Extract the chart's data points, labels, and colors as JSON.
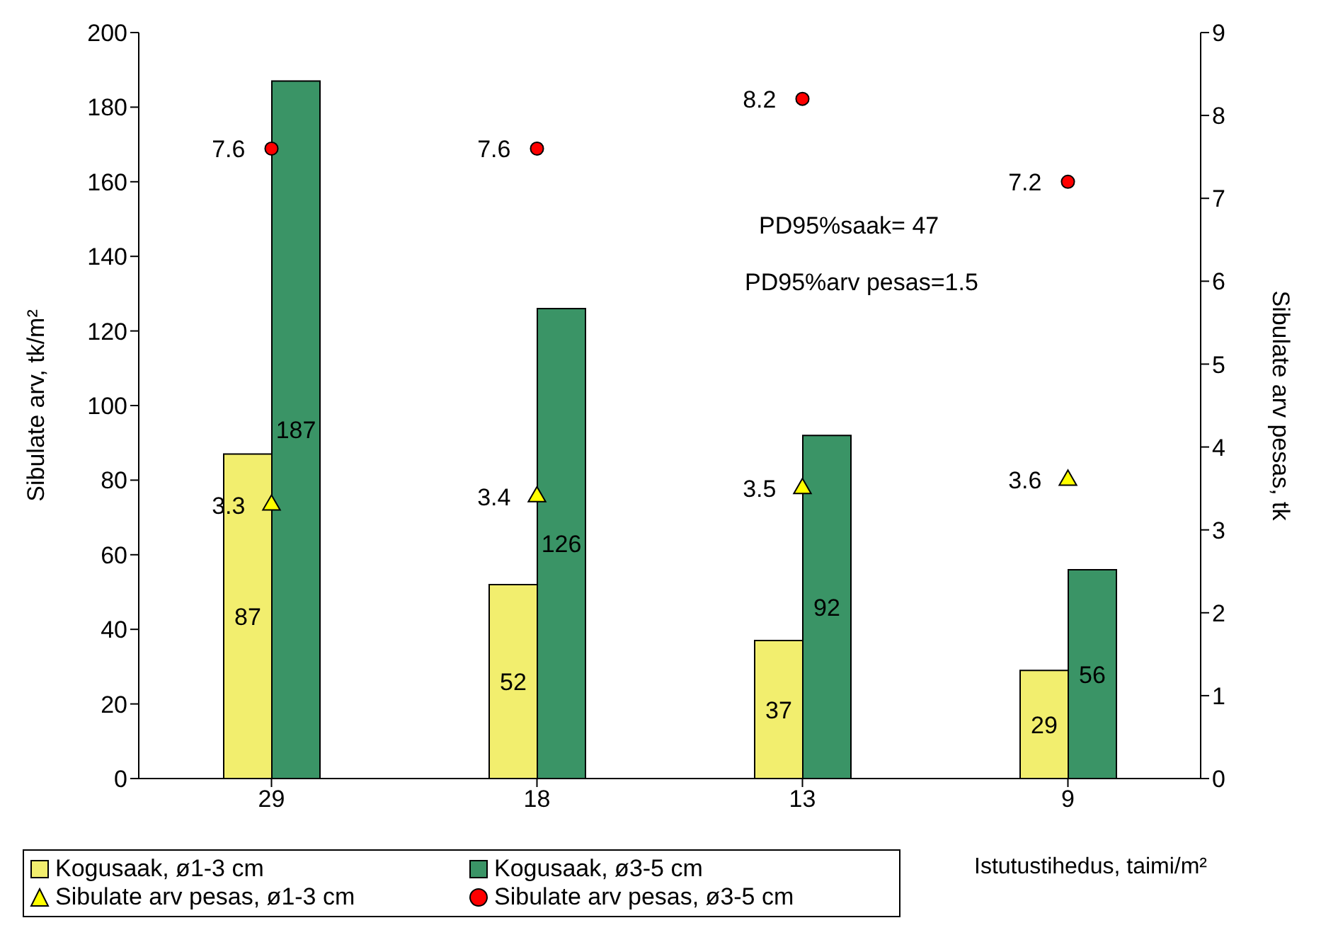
{
  "chart_data": {
    "type": "bar",
    "categories": [
      "29",
      "18",
      "13",
      "9"
    ],
    "series": [
      {
        "name": "Kogusaak,  ø1-3 cm",
        "color": "#f2ee6e",
        "values": [
          87,
          52,
          37,
          29
        ]
      },
      {
        "name": "Kogusaak,  ø3-5 cm",
        "color": "#3a9466",
        "values": [
          187,
          126,
          92,
          56
        ]
      },
      {
        "name": "Sibulate arv pesas, ø1-3 cm",
        "type": "scatter",
        "axis": "y2",
        "marker": "triangle",
        "color": "#ffff00",
        "values": [
          3.3,
          3.4,
          3.5,
          3.6
        ]
      },
      {
        "name": "Sibulate arv pesas, ø3-5 cm",
        "type": "scatter",
        "axis": "y2",
        "marker": "circle",
        "color": "#ff0000",
        "values": [
          7.6,
          7.6,
          8.2,
          7.2
        ]
      }
    ],
    "ylabel": "Sibulate arv, tk/m²",
    "y2label": "Sibulate arv pesas, tk",
    "xlabel": "Istutustihedus, taimi/m²",
    "ylim": [
      0,
      200
    ],
    "yticks": [
      0,
      20,
      40,
      60,
      80,
      100,
      120,
      140,
      160,
      180,
      200
    ],
    "y2lim": [
      0,
      9
    ],
    "y2ticks": [
      0,
      1,
      2,
      3,
      4,
      5,
      6,
      7,
      8,
      9
    ],
    "annotations": [
      "PD95%saak= 47",
      "PD95%arv pesas=1.5"
    ],
    "data_labels": true,
    "grid": false,
    "legend": "bottom left"
  }
}
